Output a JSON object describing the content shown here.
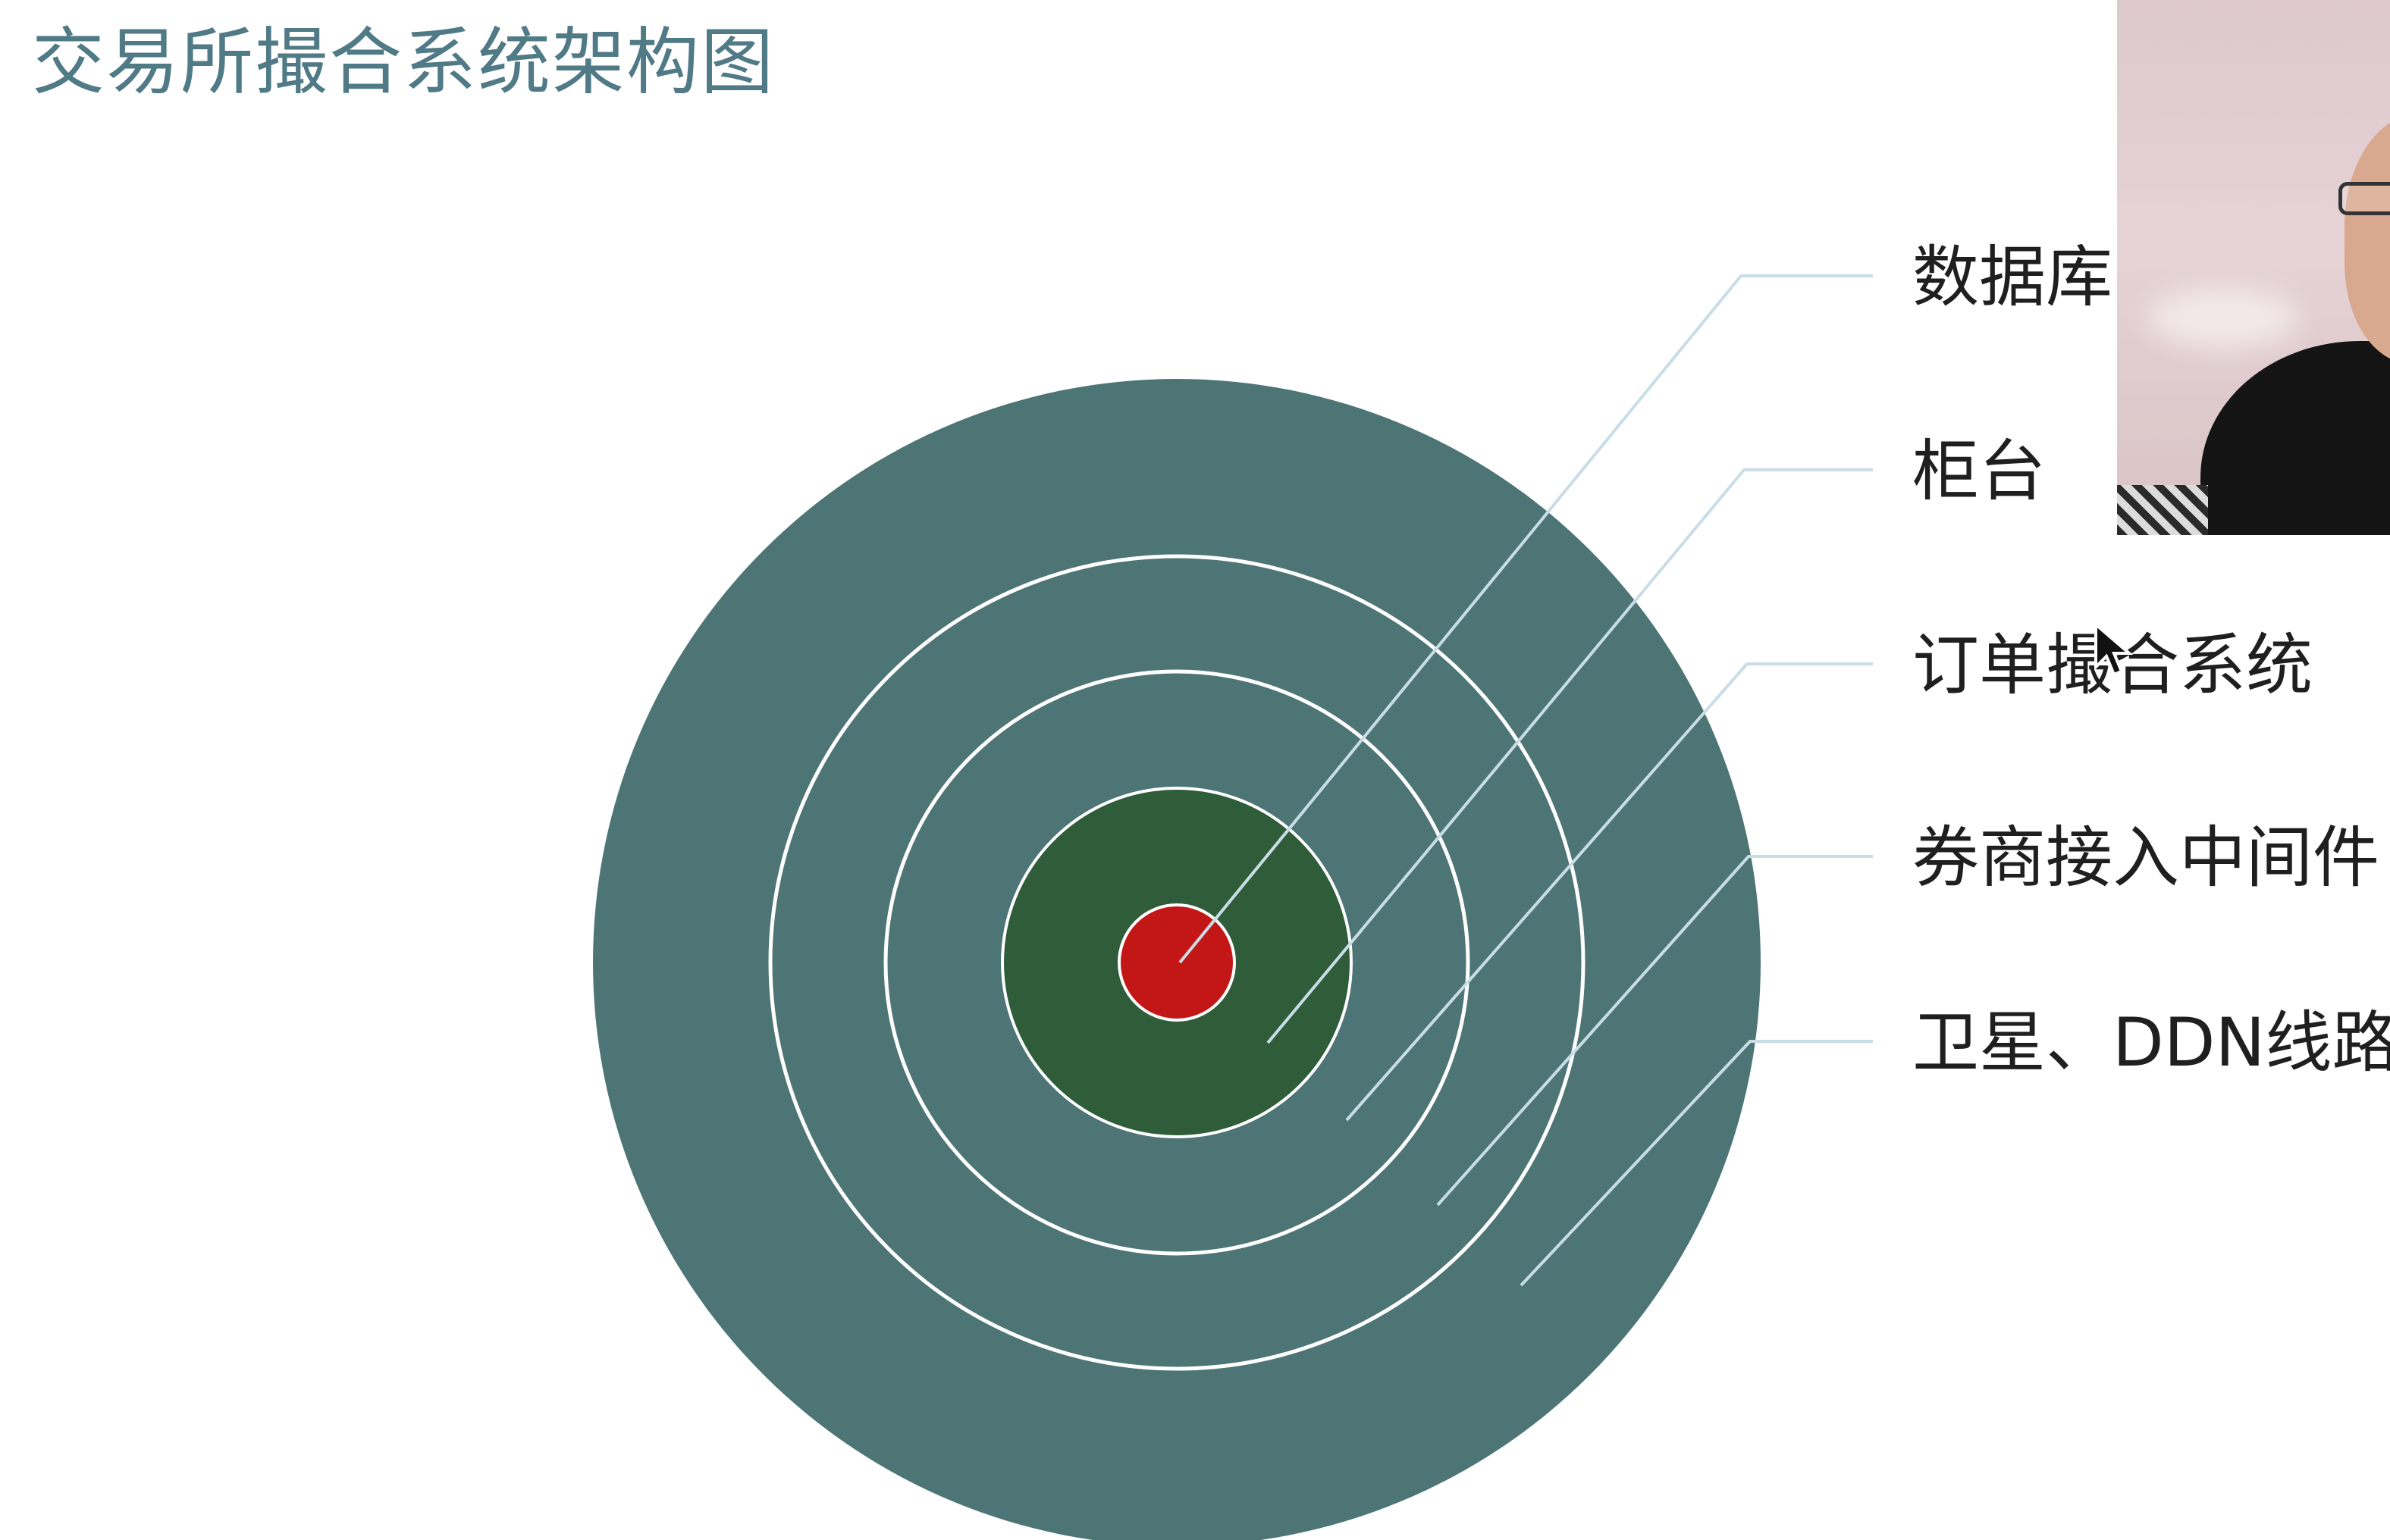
{
  "title": "交易所撮合系统架构图",
  "colors": {
    "title": "#4f7a86",
    "outer_ring": "#4d7576",
    "core_ring": "#2f5d3a",
    "center_dot": "#c31616",
    "ring_stroke": "#ffffff",
    "leader_line": "#c9dde6",
    "label": "#1f1f1f"
  },
  "layers": [
    {
      "label": "数据库"
    },
    {
      "label": "柜台"
    },
    {
      "label": "订单撮合系统"
    },
    {
      "label": "券商接入中间件"
    },
    {
      "label": "卫星、DDN线路"
    }
  ],
  "webcam": {
    "content": "presenter-video"
  }
}
